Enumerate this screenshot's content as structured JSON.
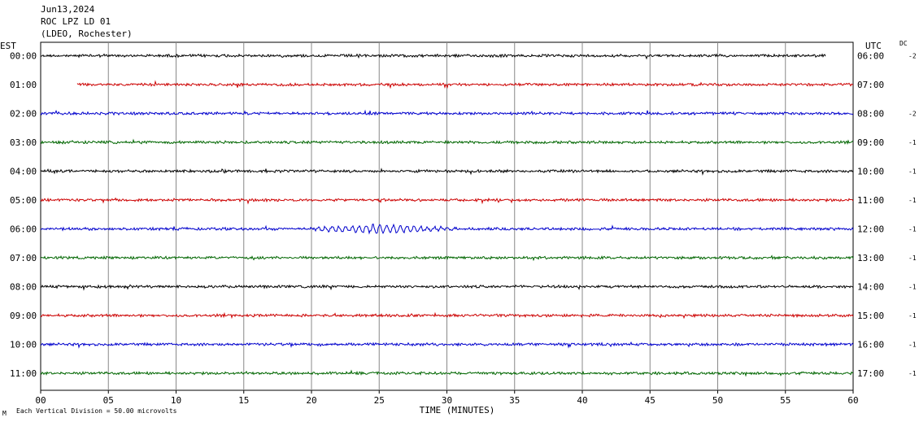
{
  "header": {
    "date": "Jun13,2024",
    "station": "ROC LPZ LD 01",
    "network": "(LDEO, Rochester)"
  },
  "left_zone": "EST",
  "right_zone": "UTC",
  "dc_label": "DC",
  "footer": {
    "scale_note": "Each Vertical Division =   50.00 microvolts",
    "corner_mark": "M"
  },
  "chart_data": {
    "type": "line",
    "title": "",
    "xlabel": "TIME (MINUTES)",
    "ylabel": "",
    "xlim": [
      0,
      60
    ],
    "x_ticks": [
      "00",
      "05",
      "10",
      "15",
      "20",
      "25",
      "30",
      "35",
      "40",
      "45",
      "50",
      "55",
      "60"
    ],
    "grid": true,
    "series_colors": [
      "#000000",
      "#cc0000",
      "#0000cc",
      "#006600"
    ],
    "rows": [
      {
        "est": "00:00",
        "utc": "06:00",
        "dc": "-2",
        "color": "#000000",
        "start_min": 0,
        "end_min": 58
      },
      {
        "est": "01:00",
        "utc": "07:00",
        "dc": "",
        "color": "#cc0000",
        "start_min": 2.7,
        "end_min": 60
      },
      {
        "est": "02:00",
        "utc": "08:00",
        "dc": "-2",
        "color": "#0000cc",
        "start_min": 0,
        "end_min": 60
      },
      {
        "est": "03:00",
        "utc": "09:00",
        "dc": "-1",
        "color": "#006600",
        "start_min": 0,
        "end_min": 60
      },
      {
        "est": "04:00",
        "utc": "10:00",
        "dc": "-1",
        "color": "#000000",
        "start_min": 0,
        "end_min": 60
      },
      {
        "est": "05:00",
        "utc": "11:00",
        "dc": "-1",
        "color": "#cc0000",
        "start_min": 0,
        "end_min": 60
      },
      {
        "est": "06:00",
        "utc": "12:00",
        "dc": "-1",
        "color": "#0000cc",
        "start_min": 0,
        "end_min": 60,
        "event": {
          "start_min": 17.5,
          "peak_min": 25,
          "end_min": 33
        }
      },
      {
        "est": "07:00",
        "utc": "13:00",
        "dc": "-1",
        "color": "#006600",
        "start_min": 0,
        "end_min": 60
      },
      {
        "est": "08:00",
        "utc": "14:00",
        "dc": "-1",
        "color": "#000000",
        "start_min": 0,
        "end_min": 60
      },
      {
        "est": "09:00",
        "utc": "15:00",
        "dc": "-1",
        "color": "#cc0000",
        "start_min": 0,
        "end_min": 60
      },
      {
        "est": "10:00",
        "utc": "16:00",
        "dc": "-1",
        "color": "#0000cc",
        "start_min": 0,
        "end_min": 60
      },
      {
        "est": "11:00",
        "utc": "17:00",
        "dc": "-1",
        "color": "#006600",
        "start_min": 0,
        "end_min": 60
      }
    ]
  }
}
